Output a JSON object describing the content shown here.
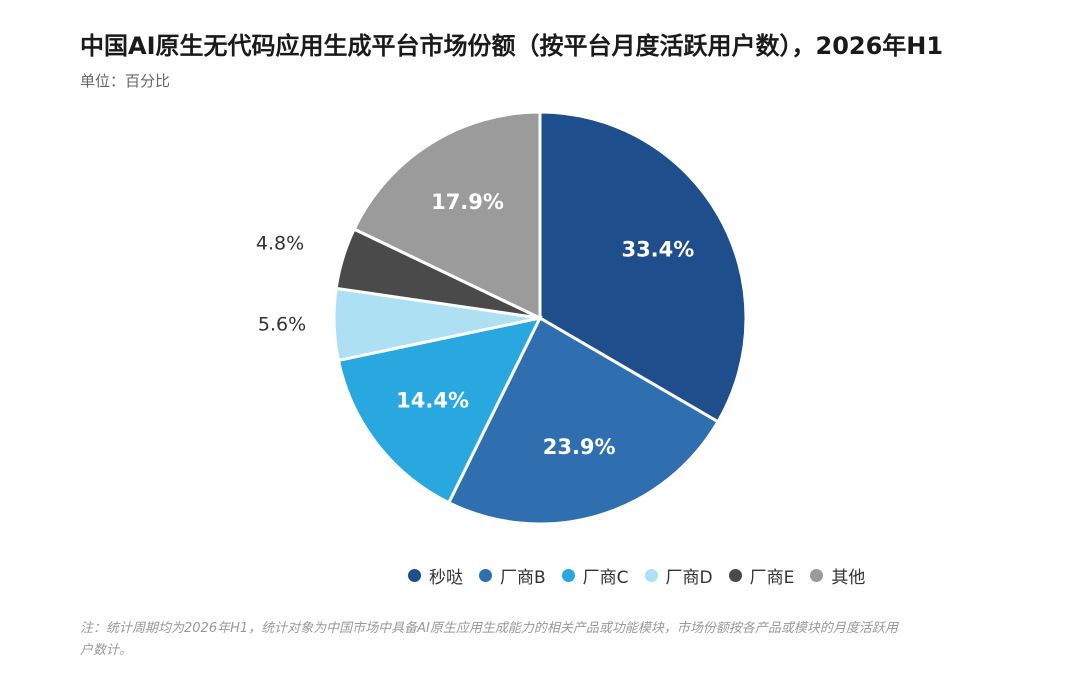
{
  "title": "中国AI原生无代码应用生成平台市场份额（按平台月度活跃用户数），2026年H1",
  "unit": "单位：百分比",
  "note": "注：统计周期均为2026年H1，统计对象为中国市场中具备AI原生应用生成能力的相关产品或功能模块，市场份额按各产品或模块的月度活跃用户数计。",
  "chart_data": {
    "type": "pie",
    "categories": [
      "秒哒",
      "厂商B",
      "厂商C",
      "厂商D",
      "厂商E",
      "其他"
    ],
    "values": [
      33.4,
      23.9,
      14.4,
      5.6,
      4.8,
      17.9
    ],
    "labels": [
      "33.4%",
      "23.9%",
      "14.4%",
      "5.6%",
      "4.8%",
      "17.9%"
    ],
    "colors": [
      "#1f4e8c",
      "#2f6fb0",
      "#29a8df",
      "#aee0f4",
      "#4a4a4a",
      "#9b9b9b"
    ],
    "label_colors": [
      "#ffffff",
      "#ffffff",
      "#ffffff",
      "#333333",
      "#333333",
      "#ffffff"
    ],
    "label_inside": [
      true,
      true,
      true,
      false,
      false,
      true
    ],
    "legend_position": "bottom"
  }
}
